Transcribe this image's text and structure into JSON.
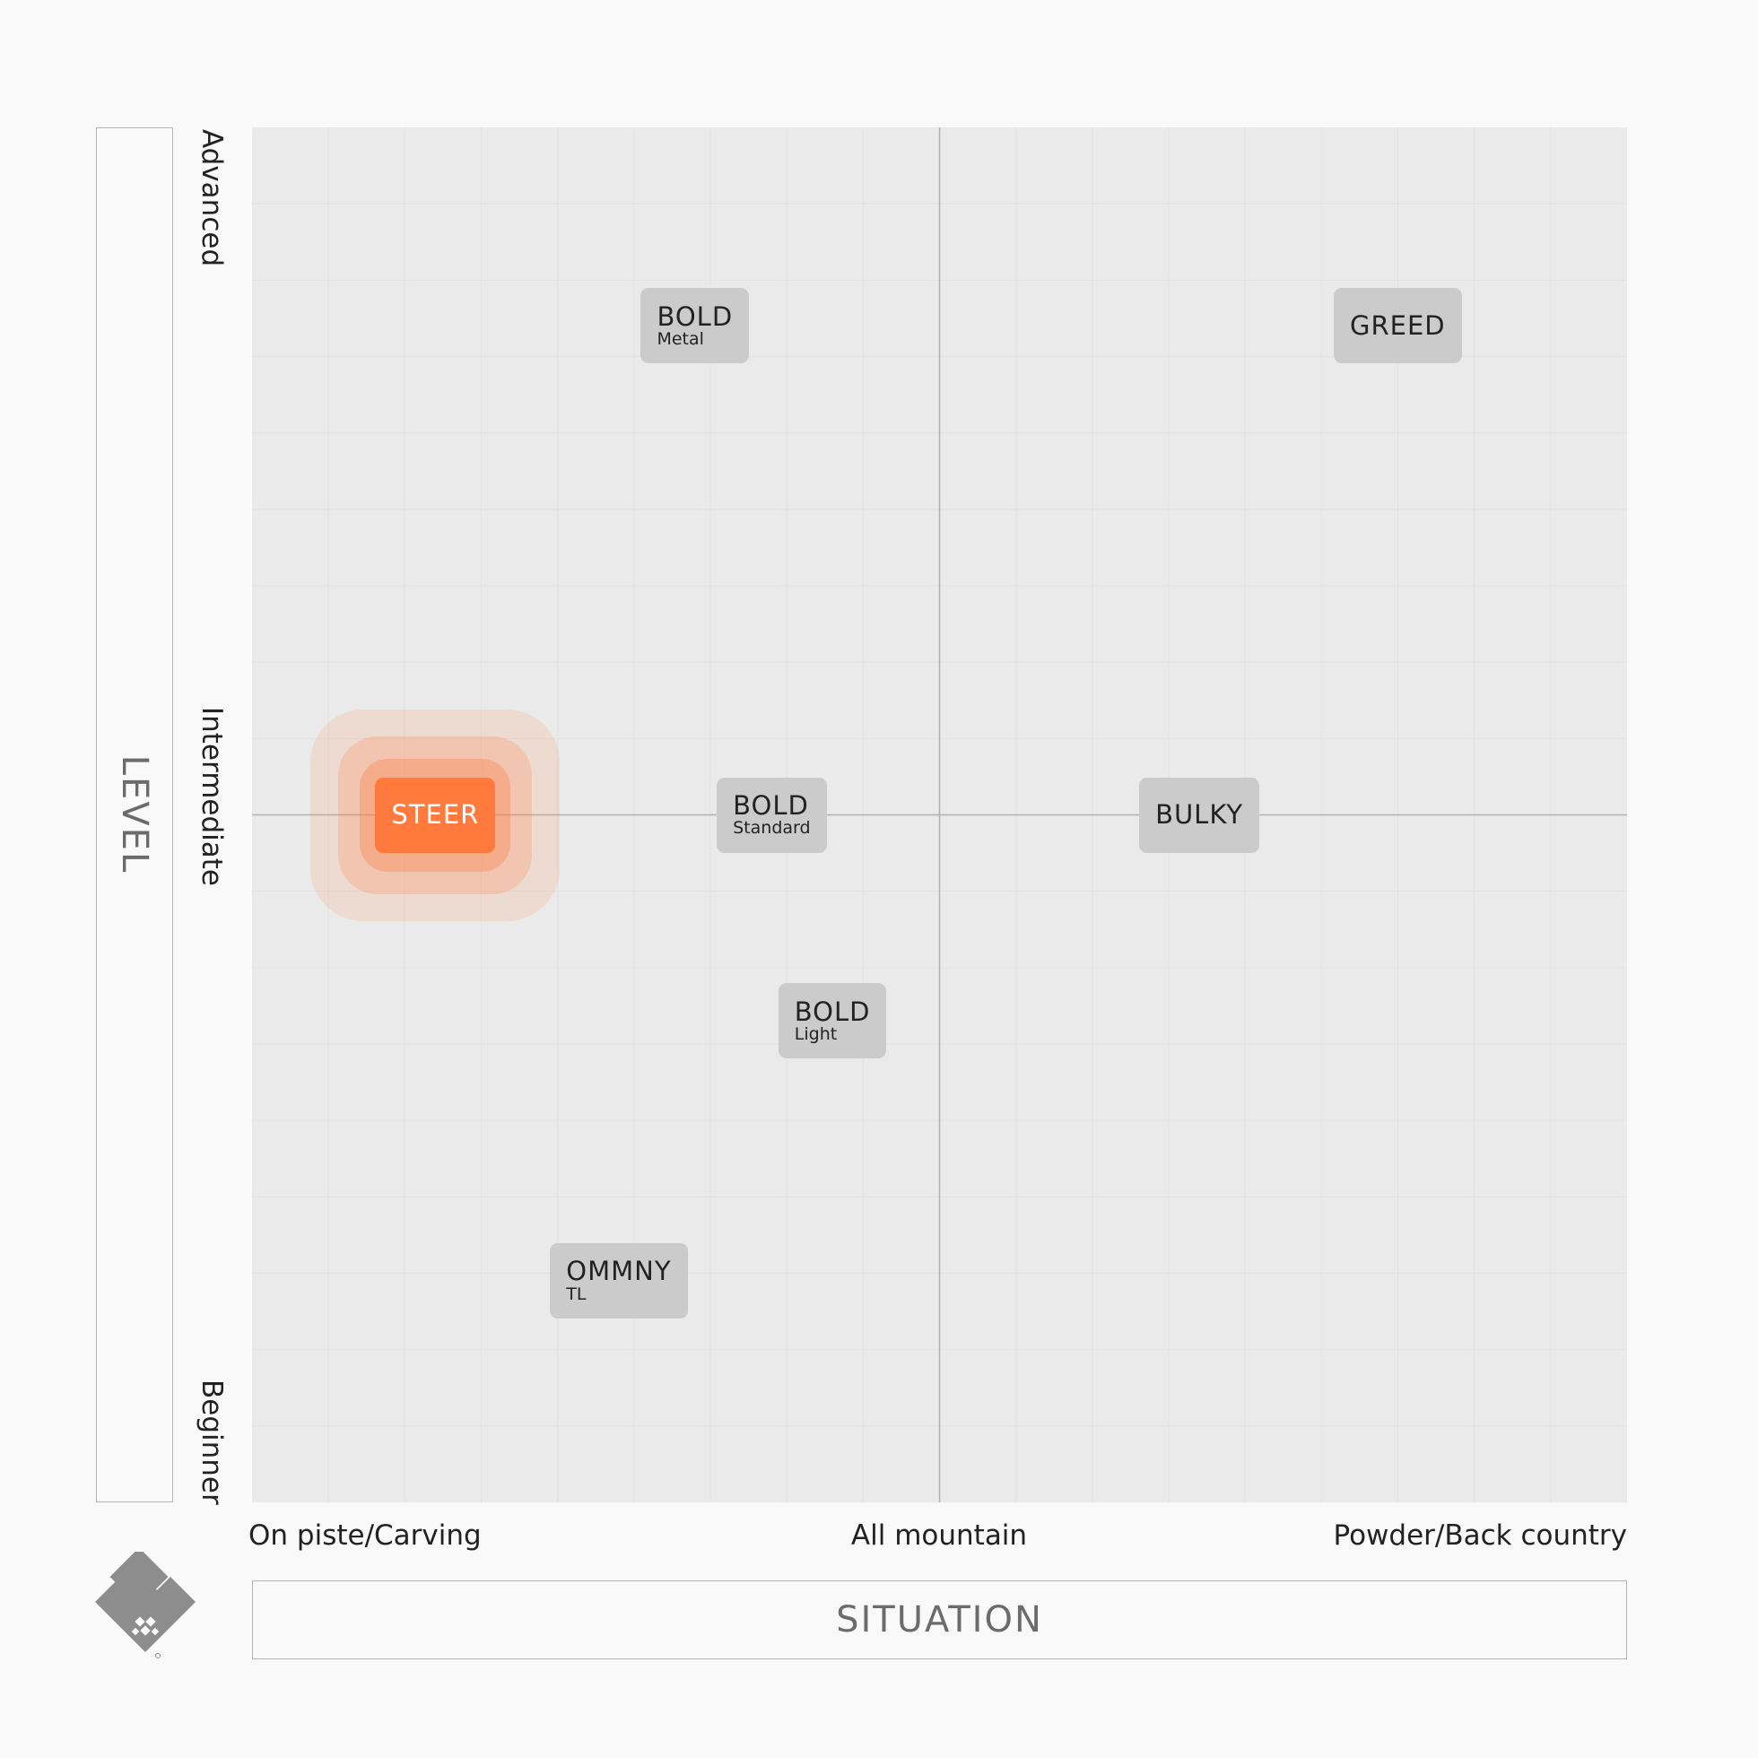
{
  "chart_data": {
    "type": "scatter",
    "title": "",
    "xlabel": "SITUATION",
    "ylabel": "LEVEL",
    "x_ticks": [
      "On piste/Carving",
      "All mountain",
      "Powder/Back country"
    ],
    "y_ticks": [
      "Advanced",
      "Intermediate",
      "Beginner"
    ],
    "xlim": [
      0,
      18
    ],
    "ylim": [
      0,
      18
    ],
    "grid": true,
    "center_lines": {
      "x": 9,
      "y": 9
    },
    "points": [
      {
        "name": "BOLD",
        "sub": "Metal",
        "x": 5.8,
        "y": 15.4
      },
      {
        "name": "GREED",
        "sub": "",
        "x": 15.0,
        "y": 15.4
      },
      {
        "name": "STEER",
        "sub": "",
        "x": 2.4,
        "y": 9.0,
        "highlight": true
      },
      {
        "name": "BOLD",
        "sub": "Standard",
        "x": 6.8,
        "y": 9.0
      },
      {
        "name": "BULKY",
        "sub": "",
        "x": 12.4,
        "y": 9.0
      },
      {
        "name": "BOLD",
        "sub": "Light",
        "x": 7.6,
        "y": 6.3
      },
      {
        "name": "OMMNY",
        "sub": "TL",
        "x": 4.8,
        "y": 2.9
      }
    ],
    "colors": {
      "plot_background": "#eaeaea",
      "point_fill": "#cbcbcb",
      "highlight_fill": "#ff7a3c",
      "axis_line": "#b0b0b0",
      "grid_line": "#e2e2e2"
    }
  },
  "logo": {
    "name": "brand-logo-icon"
  }
}
